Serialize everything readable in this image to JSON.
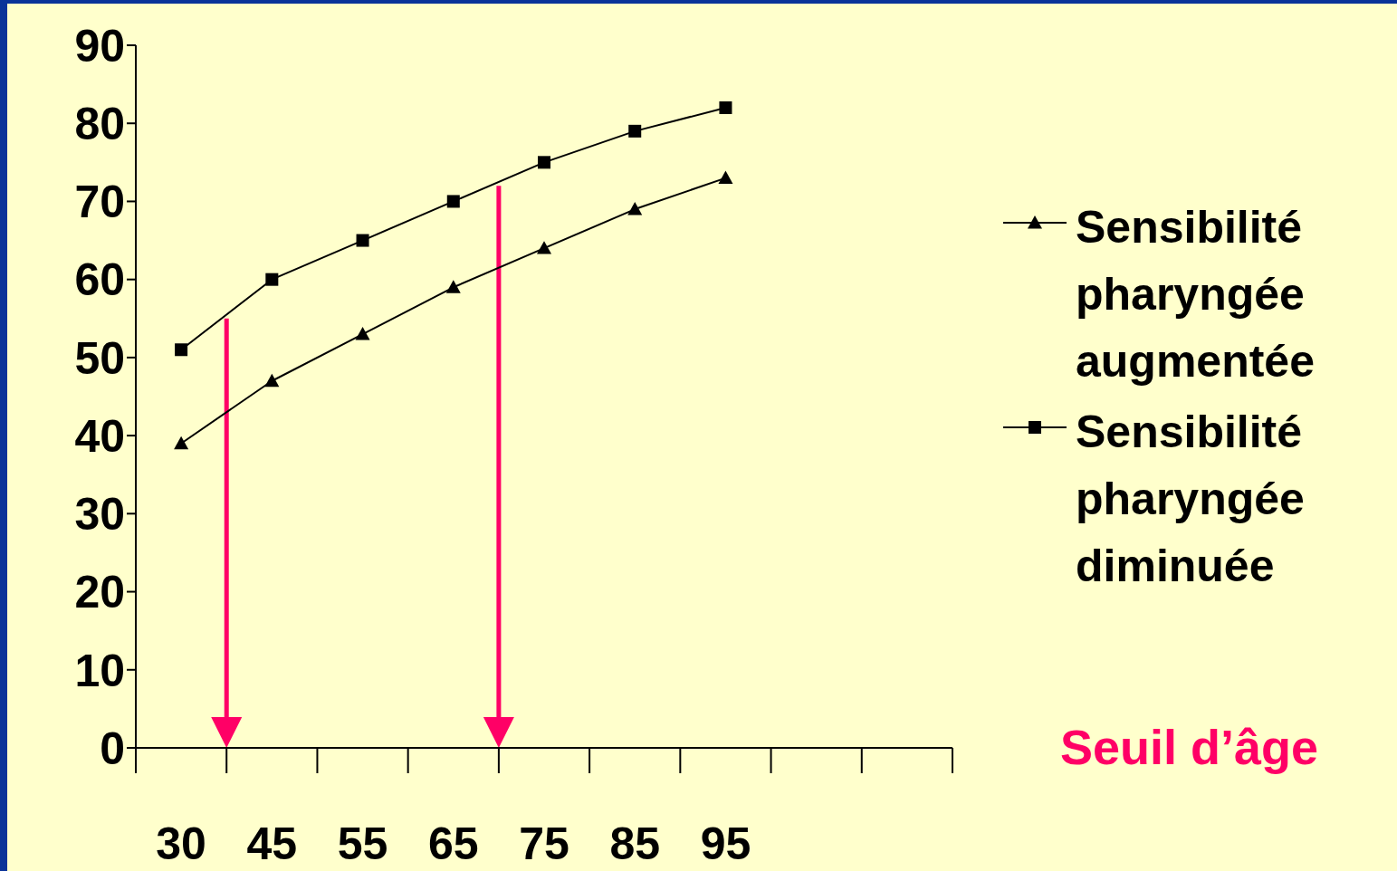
{
  "chart_data": {
    "type": "line",
    "categories": [
      "30",
      "45",
      "55",
      "65",
      "75",
      "85",
      "95",
      null,
      null
    ],
    "series": [
      {
        "name": "Sensibilité pharyngée augmentée",
        "color": "#000000",
        "marker": "triangle",
        "values": [
          39,
          47,
          53,
          59,
          64,
          69,
          73,
          null,
          null
        ]
      },
      {
        "name": "Sensibilité pharyngée diminuée",
        "color": "#000000",
        "marker": "square",
        "values": [
          51,
          60,
          65,
          70,
          75,
          79,
          82,
          null,
          null
        ]
      }
    ],
    "ylim": [
      0,
      90
    ],
    "yticks": [
      0,
      10,
      20,
      30,
      40,
      50,
      60,
      70,
      80,
      90
    ],
    "grid": false,
    "legend": "right",
    "line_style": "solid",
    "annotations": [
      "Seuil d’âge"
    ]
  }
}
